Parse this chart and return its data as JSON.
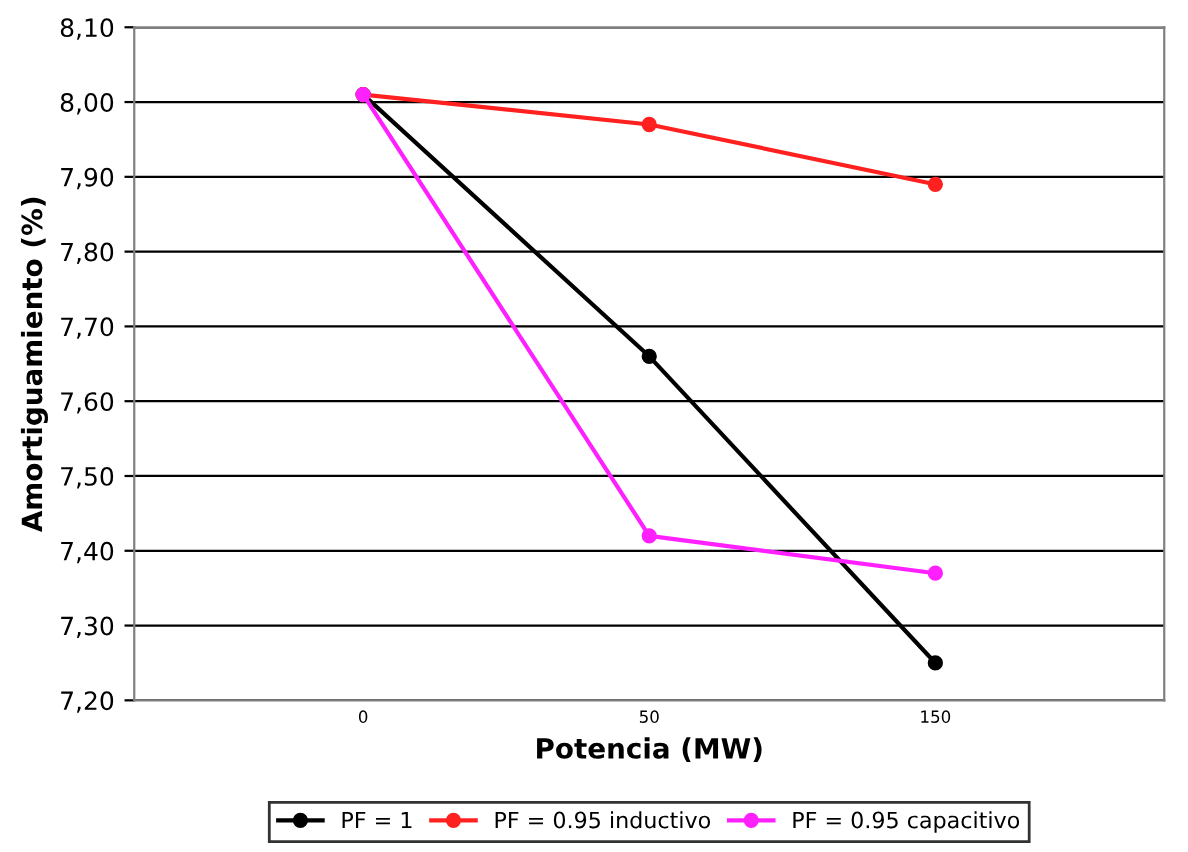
{
  "chart_data": {
    "type": "line",
    "xlabel": "Potencia (MW)",
    "ylabel": "Amortiguamiento (%)",
    "categories": [
      "0",
      "50",
      "150"
    ],
    "series": [
      {
        "name": "PF = 1",
        "color": "#000000",
        "values": [
          8.01,
          7.66,
          7.25
        ]
      },
      {
        "name": "PF = 0.95 inductivo",
        "color": "#ff2020",
        "values": [
          8.01,
          7.97,
          7.89
        ]
      },
      {
        "name": "PF = 0.95 capacitivo",
        "color": "#ff20ff",
        "values": [
          8.01,
          7.42,
          7.37
        ]
      }
    ],
    "ylim": [
      7.2,
      8.1
    ],
    "yticks": [
      {
        "value": 7.2,
        "label": "7,20"
      },
      {
        "value": 7.3,
        "label": "7,30"
      },
      {
        "value": 7.4,
        "label": "7,40"
      },
      {
        "value": 7.5,
        "label": "7,50"
      },
      {
        "value": 7.6,
        "label": "7,60"
      },
      {
        "value": 7.7,
        "label": "7,70"
      },
      {
        "value": 7.8,
        "label": "7,80"
      },
      {
        "value": 7.9,
        "label": "7,90"
      },
      {
        "value": 8.0,
        "label": "8,00"
      },
      {
        "value": 8.1,
        "label": "8,10"
      }
    ],
    "grid": "y",
    "legend": "bottom",
    "marker": "circle",
    "line_style": "solid"
  }
}
